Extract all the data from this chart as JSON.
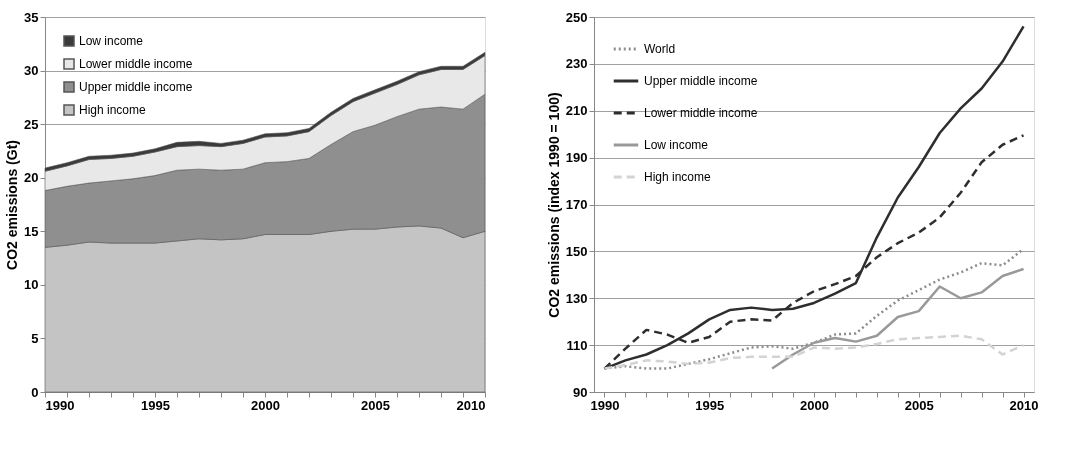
{
  "chart_data": [
    {
      "type": "area",
      "stacked": true,
      "ylabel": "CO2 emissions (Gt)",
      "legend": "top left",
      "grid": "y",
      "x": [
        1990,
        1991,
        1992,
        1993,
        1994,
        1995,
        1996,
        1997,
        1998,
        1999,
        2000,
        2001,
        2002,
        2003,
        2004,
        2005,
        2006,
        2007,
        2008,
        2009,
        2010
      ],
      "xlim": [
        1990,
        2010
      ],
      "xticks": [
        1990,
        {
          "value": 1991,
          "label": null
        },
        {
          "value": 1992,
          "label": null
        },
        {
          "value": 1993,
          "label": null
        },
        {
          "value": 1994,
          "label": null
        },
        1995,
        {
          "value": 1996,
          "label": null
        },
        {
          "value": 1997,
          "label": null
        },
        {
          "value": 1998,
          "label": null
        },
        {
          "value": 1999,
          "label": null
        },
        2000,
        {
          "value": 2001,
          "label": null
        },
        {
          "value": 2002,
          "label": null
        },
        {
          "value": 2003,
          "label": null
        },
        {
          "value": 2004,
          "label": null
        },
        2005,
        {
          "value": 2006,
          "label": null
        },
        {
          "value": 2007,
          "label": null
        },
        {
          "value": 2008,
          "label": null
        },
        {
          "value": 2009,
          "label": null
        },
        2010
      ],
      "ylim": [
        0,
        35
      ],
      "yticks": [
        0,
        5,
        10,
        15,
        20,
        25,
        30,
        35
      ],
      "series": [
        {
          "name": "High income",
          "color": "#c4c4c4",
          "values": [
            13.5,
            13.7,
            14.0,
            13.9,
            13.9,
            13.9,
            14.1,
            14.3,
            14.2,
            14.3,
            14.7,
            14.7,
            14.7,
            15.0,
            15.2,
            15.2,
            15.4,
            15.5,
            15.3,
            14.4,
            15.0
          ]
        },
        {
          "name": "Upper middle income",
          "color": "#8f8f8f",
          "values": [
            5.3,
            5.5,
            5.5,
            5.8,
            6.0,
            6.3,
            6.6,
            6.5,
            6.5,
            6.5,
            6.7,
            6.8,
            7.1,
            8.1,
            9.1,
            9.7,
            10.3,
            10.9,
            11.3,
            12.0,
            12.8
          ]
        },
        {
          "name": "Lower middle income",
          "color": "#e8e8e8",
          "values": [
            1.8,
            1.9,
            2.2,
            2.1,
            2.1,
            2.2,
            2.2,
            2.2,
            2.2,
            2.4,
            2.4,
            2.4,
            2.5,
            2.7,
            2.8,
            3.0,
            3.0,
            3.2,
            3.5,
            3.7,
            3.6
          ]
        },
        {
          "name": "Low income",
          "color": "#3a3a3a",
          "values": [
            0.3,
            0.3,
            0.3,
            0.3,
            0.3,
            0.3,
            0.4,
            0.4,
            0.3,
            0.3,
            0.3,
            0.3,
            0.3,
            0.3,
            0.3,
            0.3,
            0.3,
            0.3,
            0.3,
            0.3,
            0.3
          ]
        }
      ]
    },
    {
      "type": "line",
      "ylabel": "CO2 emissions (index 1990 = 100)",
      "legend": "top left",
      "grid": "y",
      "x": [
        1990,
        1991,
        1992,
        1993,
        1994,
        1995,
        1996,
        1997,
        1998,
        1999,
        2000,
        2001,
        2002,
        2003,
        2004,
        2005,
        2006,
        2007,
        2008,
        2009,
        2010
      ],
      "xlim": [
        1989.5,
        2010.5
      ],
      "xticks": [
        1990,
        {
          "value": 1991,
          "label": null
        },
        {
          "value": 1992,
          "label": null
        },
        {
          "value": 1993,
          "label": null
        },
        {
          "value": 1994,
          "label": null
        },
        1995,
        {
          "value": 1996,
          "label": null
        },
        {
          "value": 1997,
          "label": null
        },
        {
          "value": 1998,
          "label": null
        },
        {
          "value": 1999,
          "label": null
        },
        2000,
        {
          "value": 2001,
          "label": null
        },
        {
          "value": 2002,
          "label": null
        },
        {
          "value": 2003,
          "label": null
        },
        {
          "value": 2004,
          "label": null
        },
        2005,
        {
          "value": 2006,
          "label": null
        },
        {
          "value": 2007,
          "label": null
        },
        {
          "value": 2008,
          "label": null
        },
        {
          "value": 2009,
          "label": null
        },
        2010
      ],
      "ylim": [
        90,
        250
      ],
      "yticks": [
        90,
        110,
        130,
        150,
        170,
        190,
        210,
        230,
        250
      ],
      "series": [
        {
          "name": "World",
          "color": "#8c8c8c",
          "line_style": "dotted",
          "values": [
            100,
            101,
            100,
            100,
            102,
            104,
            106.5,
            109,
            109.5,
            108.5,
            111,
            114.5,
            115,
            122.5,
            129,
            133.5,
            138,
            141,
            145,
            144,
            151
          ]
        },
        {
          "name": "Upper middle income",
          "color": "#2e2e2e",
          "line_style": "solid",
          "values": [
            100,
            103.5,
            106,
            110,
            115,
            121,
            125,
            126,
            125,
            125.5,
            128,
            132,
            136.5,
            156,
            173,
            186,
            200.5,
            211,
            219.5,
            231,
            246
          ]
        },
        {
          "name": "Lower middle income",
          "color": "#2e2e2e",
          "line_style": "dashed",
          "values": [
            100,
            108.5,
            116.5,
            114.5,
            111,
            113.5,
            120,
            121,
            120.5,
            128,
            133,
            136,
            139.5,
            147.5,
            153.5,
            158,
            164.5,
            175,
            188,
            195.5,
            199.5
          ]
        },
        {
          "name": "Low income",
          "color": "#999999",
          "line_style": "solid",
          "values": [
            null,
            null,
            null,
            null,
            null,
            null,
            null,
            null,
            100,
            106,
            111,
            113,
            111.5,
            114,
            122,
            124.5,
            135,
            130,
            132.5,
            139.5,
            142.5
          ]
        },
        {
          "name": "High income",
          "color": "#d3d3d3",
          "line_style": "dashed",
          "values": [
            100,
            101.5,
            103.5,
            103,
            102,
            102.5,
            104.5,
            105,
            105,
            105,
            109,
            108.5,
            109,
            110.5,
            112.5,
            113,
            113.5,
            114,
            112.5,
            106,
            110
          ]
        }
      ]
    }
  ]
}
